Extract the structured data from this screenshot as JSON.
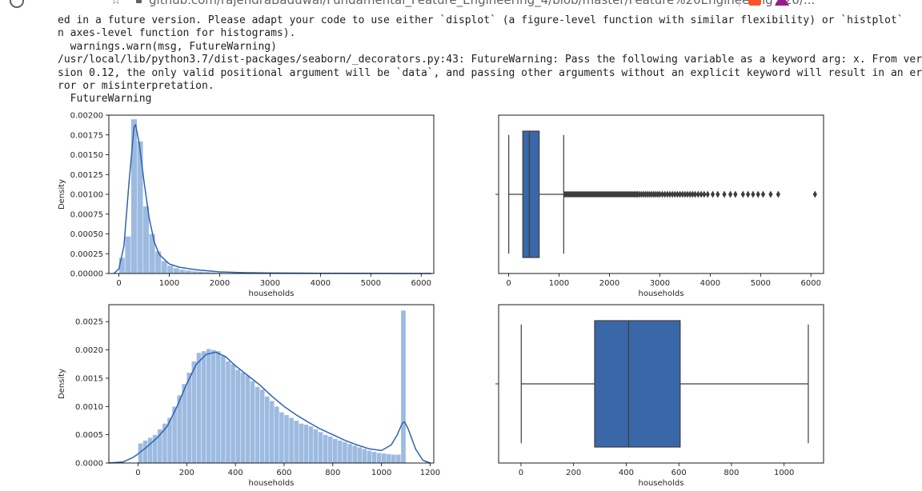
{
  "browser": {
    "url_text": "github.com/rajendraBaduwal/Fundamental_Feature_Engineering_4/blob/master/Feature%20Engineering%20/..."
  },
  "output": {
    "lines": [
      "ed in a future version. Please adapt your code to use either `displot` (a figure-level function with similar flexibility) or `histplot`",
      "n axes-level function for histograms).",
      "  warnings.warn(msg, FutureWarning)",
      "/usr/local/lib/python3.7/dist-packages/seaborn/_decorators.py:43: FutureWarning: Pass the following variable as a keyword arg: x. From ver",
      "sion 0.12, the only valid positional argument will be `data`, and passing other arguments without an explicit keyword will result in an er",
      "ror or misinterpretation.",
      "  FutureWarning"
    ]
  },
  "colors": {
    "hist_fill": "#9dbbe0",
    "kde_line": "#2f62b0",
    "box_fill": "#3a67a8",
    "box_edge": "#3d3d3d",
    "axes": "#000000",
    "text": "#262626"
  },
  "chart_data": [
    {
      "type": "histogram+kde",
      "xlabel": "households",
      "ylabel": "Density",
      "xticks": [
        "0",
        "1000",
        "2000",
        "3000",
        "4000",
        "5000",
        "6000"
      ],
      "yticks": [
        "0.00000",
        "0.00025",
        "0.00050",
        "0.00075",
        "0.00100",
        "0.00125",
        "0.00150",
        "0.00175",
        "0.00200"
      ],
      "xlim": [
        -200,
        6250
      ],
      "ylim": [
        0,
        0.002
      ],
      "bin_width": 120,
      "bins": [
        {
          "x": 60,
          "y": 0.0002
        },
        {
          "x": 180,
          "y": 0.00047
        },
        {
          "x": 300,
          "y": 0.00195
        },
        {
          "x": 420,
          "y": 0.00167
        },
        {
          "x": 540,
          "y": 0.00085
        },
        {
          "x": 660,
          "y": 0.0005
        },
        {
          "x": 780,
          "y": 0.00028
        },
        {
          "x": 900,
          "y": 0.00016
        },
        {
          "x": 1020,
          "y": 0.0001
        },
        {
          "x": 1140,
          "y": 7e-05
        },
        {
          "x": 1260,
          "y": 5e-05
        },
        {
          "x": 1380,
          "y": 4e-05
        },
        {
          "x": 1500,
          "y": 3e-05
        },
        {
          "x": 1620,
          "y": 2.5e-05
        },
        {
          "x": 1740,
          "y": 2e-05
        },
        {
          "x": 1860,
          "y": 1.5e-05
        },
        {
          "x": 2000,
          "y": 1e-05
        },
        {
          "x": 2300,
          "y": 6e-06
        },
        {
          "x": 2700,
          "y": 4e-06
        },
        {
          "x": 3200,
          "y": 2e-06
        },
        {
          "x": 4000,
          "y": 1e-06
        },
        {
          "x": 5000,
          "y": 5e-07
        },
        {
          "x": 6000,
          "y": 3e-07
        }
      ],
      "kde": [
        [
          -100,
          0.0
        ],
        [
          0,
          6e-05
        ],
        [
          100,
          0.00035
        ],
        [
          200,
          0.00115
        ],
        [
          300,
          0.00185
        ],
        [
          330,
          0.00188
        ],
        [
          400,
          0.00165
        ],
        [
          500,
          0.00115
        ],
        [
          600,
          0.0007
        ],
        [
          700,
          0.0004
        ],
        [
          800,
          0.00024
        ],
        [
          1000,
          0.00012
        ],
        [
          1200,
          8e-05
        ],
        [
          1500,
          5e-05
        ],
        [
          2000,
          2e-05
        ],
        [
          2500,
          1e-05
        ],
        [
          3000,
          6e-06
        ],
        [
          4000,
          3e-06
        ],
        [
          5000,
          1e-06
        ],
        [
          6200,
          0.0
        ]
      ]
    },
    {
      "type": "boxplot",
      "xlabel": "households",
      "xticks": [
        "0",
        "1000",
        "2000",
        "3000",
        "4000",
        "5000",
        "6000"
      ],
      "xlim": [
        -200,
        6250
      ],
      "whisker_low": 1,
      "q1": 280,
      "median": 409,
      "q3": 605,
      "whisker_high": 1092,
      "outliers_dense_range": [
        1092,
        2550
      ],
      "outliers": [
        2560,
        2600,
        2640,
        2680,
        2720,
        2760,
        2800,
        2840,
        2880,
        2920,
        2960,
        3000,
        3050,
        3100,
        3150,
        3200,
        3250,
        3300,
        3350,
        3400,
        3450,
        3500,
        3550,
        3600,
        3650,
        3700,
        3760,
        3820,
        3880,
        3950,
        4050,
        4150,
        4280,
        4400,
        4500,
        4650,
        4750,
        4850,
        4950,
        5050,
        5200,
        5350,
        6080
      ]
    },
    {
      "type": "histogram+kde",
      "xlabel": "households",
      "ylabel": "Density",
      "xticks": [
        "0",
        "200",
        "400",
        "600",
        "800",
        "1000",
        "1200"
      ],
      "yticks": [
        "0.0000",
        "0.0005",
        "0.0010",
        "0.0015",
        "0.0020",
        "0.0025"
      ],
      "xlim": [
        -120,
        1215
      ],
      "ylim": [
        0,
        0.0028
      ],
      "bin_width": 20,
      "bins": [
        {
          "x": 10,
          "y": 0.00035
        },
        {
          "x": 30,
          "y": 0.0004
        },
        {
          "x": 50,
          "y": 0.00045
        },
        {
          "x": 70,
          "y": 0.0005
        },
        {
          "x": 90,
          "y": 0.0006
        },
        {
          "x": 110,
          "y": 0.0007
        },
        {
          "x": 130,
          "y": 0.0008
        },
        {
          "x": 150,
          "y": 0.001
        },
        {
          "x": 170,
          "y": 0.0012
        },
        {
          "x": 190,
          "y": 0.0014
        },
        {
          "x": 210,
          "y": 0.0016
        },
        {
          "x": 230,
          "y": 0.0018
        },
        {
          "x": 250,
          "y": 0.00195
        },
        {
          "x": 270,
          "y": 0.00198
        },
        {
          "x": 290,
          "y": 0.00202
        },
        {
          "x": 310,
          "y": 0.002
        },
        {
          "x": 330,
          "y": 0.00198
        },
        {
          "x": 350,
          "y": 0.0019
        },
        {
          "x": 370,
          "y": 0.0018
        },
        {
          "x": 390,
          "y": 0.00175
        },
        {
          "x": 410,
          "y": 0.00165
        },
        {
          "x": 430,
          "y": 0.0016
        },
        {
          "x": 450,
          "y": 0.00155
        },
        {
          "x": 470,
          "y": 0.00145
        },
        {
          "x": 490,
          "y": 0.00135
        },
        {
          "x": 510,
          "y": 0.0013
        },
        {
          "x": 530,
          "y": 0.00118
        },
        {
          "x": 550,
          "y": 0.0011
        },
        {
          "x": 570,
          "y": 0.001
        },
        {
          "x": 590,
          "y": 0.0009
        },
        {
          "x": 610,
          "y": 0.00085
        },
        {
          "x": 630,
          "y": 0.0008
        },
        {
          "x": 650,
          "y": 0.00075
        },
        {
          "x": 670,
          "y": 0.0007
        },
        {
          "x": 690,
          "y": 0.00068
        },
        {
          "x": 710,
          "y": 0.00065
        },
        {
          "x": 730,
          "y": 0.0006
        },
        {
          "x": 750,
          "y": 0.00055
        },
        {
          "x": 770,
          "y": 0.0005
        },
        {
          "x": 790,
          "y": 0.00047
        },
        {
          "x": 810,
          "y": 0.00043
        },
        {
          "x": 830,
          "y": 0.0004
        },
        {
          "x": 850,
          "y": 0.00037
        },
        {
          "x": 870,
          "y": 0.00034
        },
        {
          "x": 890,
          "y": 0.00031
        },
        {
          "x": 910,
          "y": 0.00028
        },
        {
          "x": 930,
          "y": 0.00025
        },
        {
          "x": 950,
          "y": 0.00022
        },
        {
          "x": 970,
          "y": 0.0002
        },
        {
          "x": 990,
          "y": 0.00018
        },
        {
          "x": 1010,
          "y": 0.00017
        },
        {
          "x": 1030,
          "y": 0.00016
        },
        {
          "x": 1050,
          "y": 0.00015
        },
        {
          "x": 1070,
          "y": 0.00015
        },
        {
          "x": 1090,
          "y": 0.0027
        }
      ],
      "kde": [
        [
          -120,
          0.0
        ],
        [
          -60,
          2e-05
        ],
        [
          -20,
          0.0001
        ],
        [
          0,
          0.00016
        ],
        [
          40,
          0.0003
        ],
        [
          80,
          0.00045
        ],
        [
          120,
          0.00065
        ],
        [
          160,
          0.001
        ],
        [
          200,
          0.0014
        ],
        [
          240,
          0.00175
        ],
        [
          280,
          0.00192
        ],
        [
          320,
          0.00196
        ],
        [
          360,
          0.00188
        ],
        [
          400,
          0.00172
        ],
        [
          450,
          0.00155
        ],
        [
          500,
          0.00138
        ],
        [
          550,
          0.00118
        ],
        [
          600,
          0.001
        ],
        [
          650,
          0.00085
        ],
        [
          700,
          0.00072
        ],
        [
          750,
          0.0006
        ],
        [
          800,
          0.0005
        ],
        [
          850,
          0.0004
        ],
        [
          900,
          0.00032
        ],
        [
          950,
          0.00025
        ],
        [
          1000,
          0.00022
        ],
        [
          1040,
          0.00032
        ],
        [
          1065,
          0.0005
        ],
        [
          1085,
          0.0007
        ],
        [
          1095,
          0.00073
        ],
        [
          1110,
          0.0006
        ],
        [
          1140,
          0.00025
        ],
        [
          1170,
          5e-05
        ],
        [
          1200,
          0.0
        ]
      ]
    },
    {
      "type": "boxplot",
      "xlabel": "households",
      "xticks": [
        "0",
        "200",
        "400",
        "600",
        "800",
        "1000"
      ],
      "xlim": [
        -85,
        1150
      ],
      "whisker_low": 1,
      "q1": 280,
      "median": 409,
      "q3": 605,
      "whisker_high": 1092,
      "outliers": []
    }
  ]
}
